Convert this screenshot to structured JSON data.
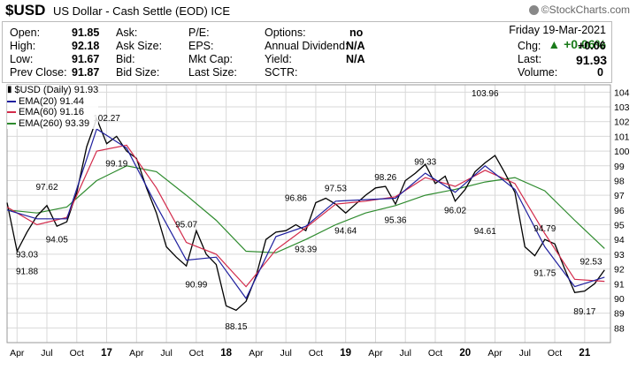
{
  "header": {
    "symbol": "$USD",
    "description": "US Dollar - Cash Settle (EOD) ICE",
    "brand": "©StockCharts.com"
  },
  "quote": {
    "date": "Friday  19-Mar-2021",
    "change_pct": "▲ +0.06%",
    "fields": [
      {
        "label": "Open:",
        "value": "91.85"
      },
      {
        "label": "High:",
        "value": "92.18"
      },
      {
        "label": "Low:",
        "value": "91.67"
      },
      {
        "label": "Prev Close:",
        "value": "91.87"
      },
      {
        "label": "Ask:",
        "value": ""
      },
      {
        "label": "Ask Size:",
        "value": ""
      },
      {
        "label": "Bid:",
        "value": ""
      },
      {
        "label": "Bid Size:",
        "value": ""
      },
      {
        "label": "P/E:",
        "value": ""
      },
      {
        "label": "EPS:",
        "value": ""
      },
      {
        "label": "Mkt Cap:",
        "value": ""
      },
      {
        "label": "Last Size:",
        "value": ""
      },
      {
        "label": "Options:",
        "value": "no"
      },
      {
        "label": "Annual Dividend:",
        "value": "N/A"
      },
      {
        "label": "Yield:",
        "value": "N/A"
      },
      {
        "label": "SCTR:",
        "value": ""
      },
      {
        "label": "Chg:",
        "value": "+0.06"
      },
      {
        "label": "Last:",
        "value": "91.93"
      },
      {
        "label": "Volume:",
        "value": "0"
      }
    ]
  },
  "legend": {
    "price": "$USD (Daily) 91.93",
    "ema20": "EMA(20) 91.44",
    "ema60": "EMA(60) 91.16",
    "ema260": "EMA(260) 93.39"
  },
  "colors": {
    "price": "#000000",
    "ema20": "#1f1f9e",
    "ema60": "#d22a4a",
    "ema260": "#2e8b2e",
    "grid": "#d9d9d9"
  },
  "chart_data": {
    "type": "line",
    "title": "$USD (Daily) 91.93",
    "ylim": [
      87,
      104.5
    ],
    "y_ticks": [
      88,
      89,
      90,
      91,
      92,
      93,
      94,
      95,
      96,
      97,
      98,
      99,
      100,
      101,
      102,
      103,
      104
    ],
    "x_tick_labels": [
      "Apr",
      "Jul",
      "Oct",
      "17",
      "Apr",
      "Jul",
      "Oct",
      "18",
      "Apr",
      "Jul",
      "Oct",
      "19",
      "Apr",
      "Jul",
      "Oct",
      "20",
      "Apr",
      "Jul",
      "Oct",
      "21"
    ],
    "x_tick_months": [
      "2016-04",
      "2016-07",
      "2016-10",
      "2017-01",
      "2017-04",
      "2017-07",
      "2017-10",
      "2018-01",
      "2018-04",
      "2018-07",
      "2018-10",
      "2019-01",
      "2019-04",
      "2019-07",
      "2019-10",
      "2020-01",
      "2020-04",
      "2020-07",
      "2020-10",
      "2021-01"
    ],
    "x_range": [
      "2016-03",
      "2021-03-19"
    ],
    "series": [
      {
        "name": "$USD (Daily)",
        "key": "price",
        "x": [
          "2016-03",
          "2016-04",
          "2016-05",
          "2016-06",
          "2016-07",
          "2016-08",
          "2016-09",
          "2016-10",
          "2016-11",
          "2016-12",
          "2017-01",
          "2017-02",
          "2017-03",
          "2017-04",
          "2017-05",
          "2017-06",
          "2017-07",
          "2017-08",
          "2017-09",
          "2017-10",
          "2017-11",
          "2017-12",
          "2018-01",
          "2018-02",
          "2018-03",
          "2018-04",
          "2018-05",
          "2018-06",
          "2018-07",
          "2018-08",
          "2018-09",
          "2018-10",
          "2018-11",
          "2018-12",
          "2019-01",
          "2019-02",
          "2019-03",
          "2019-04",
          "2019-05",
          "2019-06",
          "2019-07",
          "2019-08",
          "2019-09",
          "2019-10",
          "2019-11",
          "2019-12",
          "2020-01",
          "2020-02",
          "2020-03",
          "2020-04",
          "2020-05",
          "2020-06",
          "2020-07",
          "2020-08",
          "2020-09",
          "2020-10",
          "2020-11",
          "2020-12",
          "2021-01",
          "2021-02",
          "2021-03"
        ],
        "y": [
          96.5,
          93.2,
          94.5,
          95.6,
          96.3,
          94.9,
          95.2,
          97.2,
          100.3,
          102.2,
          100.5,
          101.0,
          100.0,
          99.5,
          97.5,
          95.8,
          93.5,
          92.8,
          92.2,
          94.6,
          93.0,
          92.3,
          89.5,
          89.2,
          89.8,
          91.5,
          94.0,
          94.5,
          94.6,
          95.0,
          94.6,
          96.5,
          96.8,
          96.4,
          95.8,
          96.4,
          97.0,
          97.5,
          97.6,
          96.4,
          98.0,
          98.5,
          99.1,
          97.8,
          98.3,
          96.6,
          97.4,
          98.6,
          99.2,
          99.7,
          98.5,
          97.2,
          93.5,
          92.9,
          94.0,
          93.7,
          92.0,
          90.4,
          90.5,
          91.0,
          91.93
        ]
      },
      {
        "name": "EMA(20)",
        "key": "ema20",
        "x": [
          "2016-03",
          "2016-06",
          "2016-09",
          "2016-12",
          "2017-03",
          "2017-06",
          "2017-09",
          "2017-12",
          "2018-03",
          "2018-06",
          "2018-09",
          "2018-12",
          "2019-03",
          "2019-06",
          "2019-09",
          "2019-12",
          "2020-03",
          "2020-06",
          "2020-09",
          "2020-12",
          "2021-03"
        ],
        "y": [
          96.0,
          95.4,
          95.4,
          101.5,
          100.2,
          96.3,
          92.6,
          92.8,
          90.0,
          94.2,
          94.9,
          96.6,
          96.7,
          96.8,
          98.5,
          97.2,
          99.0,
          97.4,
          93.5,
          90.8,
          91.44
        ]
      },
      {
        "name": "EMA(60)",
        "key": "ema60",
        "x": [
          "2016-03",
          "2016-06",
          "2016-09",
          "2016-12",
          "2017-03",
          "2017-06",
          "2017-09",
          "2017-12",
          "2018-03",
          "2018-06",
          "2018-09",
          "2018-12",
          "2019-03",
          "2019-06",
          "2019-09",
          "2019-12",
          "2020-03",
          "2020-06",
          "2020-09",
          "2020-12",
          "2021-03"
        ],
        "y": [
          96.2,
          95.0,
          95.5,
          100.0,
          100.4,
          97.5,
          93.8,
          93.0,
          90.8,
          93.3,
          94.8,
          96.4,
          96.6,
          96.9,
          98.2,
          97.6,
          98.7,
          97.8,
          94.4,
          91.3,
          91.16
        ]
      },
      {
        "name": "EMA(260)",
        "key": "ema260",
        "x": [
          "2016-03",
          "2016-06",
          "2016-09",
          "2016-12",
          "2017-03",
          "2017-06",
          "2017-09",
          "2017-12",
          "2018-03",
          "2018-06",
          "2018-09",
          "2018-12",
          "2019-03",
          "2019-06",
          "2019-09",
          "2019-12",
          "2020-03",
          "2020-06",
          "2020-09",
          "2020-12",
          "2021-03"
        ],
        "y": [
          96.0,
          95.8,
          96.2,
          98.0,
          99.0,
          98.6,
          97.0,
          95.3,
          93.2,
          93.1,
          94.0,
          95.0,
          95.8,
          96.3,
          97.0,
          97.4,
          97.9,
          98.2,
          97.3,
          95.3,
          93.39
        ]
      }
    ],
    "annotations": [
      {
        "x": "2016-05",
        "y": 91.88,
        "label": "91.88"
      },
      {
        "x": "2016-05",
        "y": 93.03,
        "label": "93.03"
      },
      {
        "x": "2016-07",
        "y": 97.62,
        "label": "97.62"
      },
      {
        "x": "2016-08",
        "y": 94.05,
        "label": "94.05"
      },
      {
        "x": "2017-01",
        "y": 102.27,
        "label": "102.27"
      },
      {
        "x": "2017-02",
        "y": 99.19,
        "label": "99.19"
      },
      {
        "x": "2017-09",
        "y": 95.07,
        "label": "95.07"
      },
      {
        "x": "2017-10",
        "y": 90.99,
        "label": "90.99"
      },
      {
        "x": "2018-02",
        "y": 88.15,
        "label": "88.15"
      },
      {
        "x": "2018-08",
        "y": 96.86,
        "label": "96.86"
      },
      {
        "x": "2018-09",
        "y": 93.39,
        "label": "93.39"
      },
      {
        "x": "2018-12",
        "y": 97.53,
        "label": "97.53"
      },
      {
        "x": "2019-01",
        "y": 94.64,
        "label": "94.64"
      },
      {
        "x": "2019-05",
        "y": 98.26,
        "label": "98.26"
      },
      {
        "x": "2019-06",
        "y": 95.36,
        "label": "95.36"
      },
      {
        "x": "2019-09",
        "y": 99.33,
        "label": "99.33"
      },
      {
        "x": "2019-12",
        "y": 96.02,
        "label": "96.02"
      },
      {
        "x": "2020-03",
        "y": 103.96,
        "label": "103.96"
      },
      {
        "x": "2020-03",
        "y": 94.61,
        "label": "94.61"
      },
      {
        "x": "2020-09",
        "y": 94.79,
        "label": "94.79"
      },
      {
        "x": "2020-09",
        "y": 91.75,
        "label": "91.75"
      },
      {
        "x": "2021-01",
        "y": 89.17,
        "label": "89.17"
      },
      {
        "x": "2021-03",
        "y": 92.53,
        "label": "92.53"
      }
    ],
    "grid": true,
    "legend_placement": "top-left"
  }
}
